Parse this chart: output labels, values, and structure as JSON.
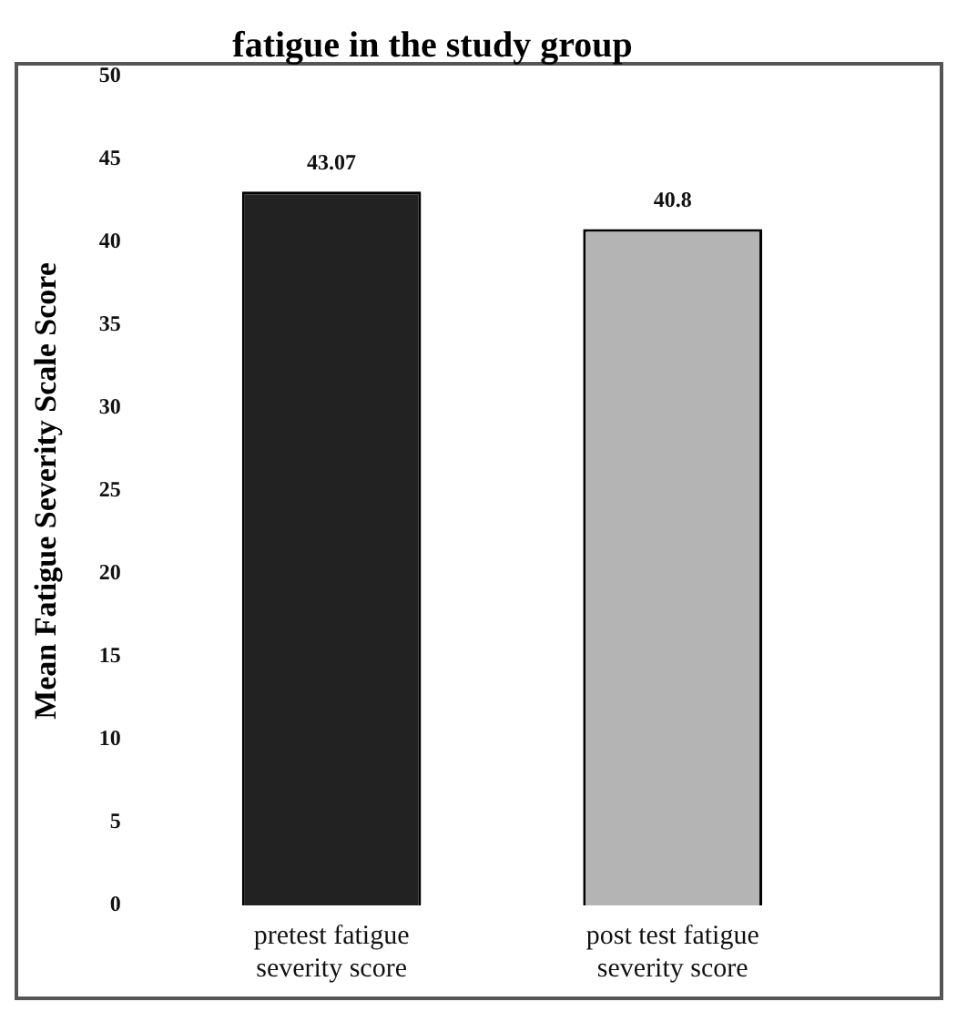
{
  "chart_data": {
    "type": "bar",
    "title": "fatigue in the study group",
    "ylabel": "Mean Fatigue Severity Scale Score",
    "categories": [
      "pretest fatigue severity score",
      "post test fatigue severity score"
    ],
    "values": [
      43.07,
      40.8
    ],
    "colors": [
      "#222222",
      "#b4b4b4"
    ],
    "ylim": [
      0,
      50
    ],
    "yticks": [
      0,
      5,
      10,
      15,
      20,
      25,
      30,
      35,
      40,
      45,
      50
    ],
    "grid": false,
    "data_labels": true,
    "legend": false
  }
}
